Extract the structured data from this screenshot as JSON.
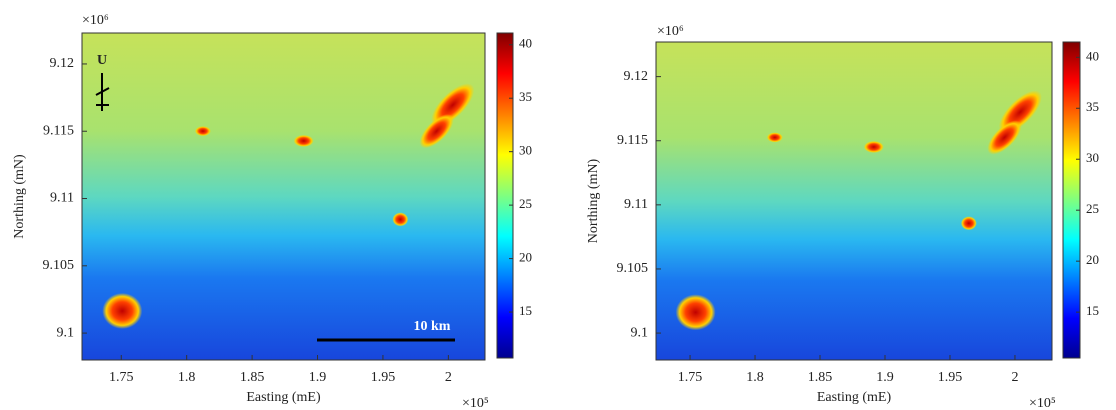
{
  "chart_data": [
    {
      "type": "heatmap",
      "colormap": "jet",
      "xlabel": "Easting (mE)",
      "ylabel": "Northing (mN)",
      "x_exponent": "×10⁵",
      "y_exponent": "×10⁶",
      "xlim": [
        1.72,
        2.028
      ],
      "ylim": [
        9.098,
        9.1223
      ],
      "xticks": [
        1.75,
        1.8,
        1.85,
        1.9,
        1.95,
        2
      ],
      "yticks": [
        9.1,
        9.105,
        9.11,
        9.115,
        9.12
      ],
      "clim": [
        10.7,
        41.1
      ],
      "cticks": [
        15,
        20,
        25,
        30,
        35,
        40
      ],
      "north_label": "U",
      "scale_label": "10 km"
    },
    {
      "type": "heatmap",
      "colormap": "jet",
      "xlabel": "Easting (mE)",
      "ylabel": "Northing (mN)",
      "x_exponent": "×10⁵",
      "y_exponent": "×10⁶",
      "xlim": [
        1.7238,
        2.0285
      ],
      "ylim": [
        9.0979,
        9.1227
      ],
      "xticks": [
        1.75,
        1.8,
        1.85,
        1.9,
        1.95,
        2
      ],
      "yticks": [
        9.1,
        9.105,
        9.11,
        9.115,
        9.12
      ],
      "clim": [
        10.5,
        41.5
      ],
      "cticks": [
        15,
        20,
        25,
        30,
        35,
        40
      ]
    }
  ]
}
